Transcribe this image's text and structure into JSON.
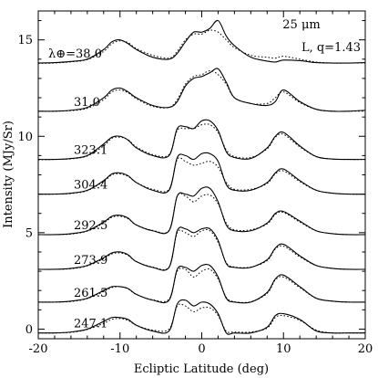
{
  "chart_data": {
    "type": "line",
    "xlabel": "Ecliptic Latitude (deg)",
    "ylabel": "Intensity (MJy/Sr)",
    "xlim": [
      -20,
      20
    ],
    "ylim": [
      -0.5,
      16.5
    ],
    "x_ticks": [
      "-20",
      "-10",
      "0",
      "10",
      "20"
    ],
    "y_ticks": [
      "0",
      "5",
      "10",
      "15"
    ],
    "x_tick_values": [
      -20,
      -10,
      0,
      10,
      20
    ],
    "y_tick_values": [
      0,
      5,
      10,
      15
    ],
    "annotations": {
      "wavelength": "25 μm",
      "model": "L, q=1.43"
    },
    "line_styles": {
      "observed": "solid",
      "model": "dotted"
    },
    "color": "#000000",
    "x_grid": [
      -20,
      -18,
      -16,
      -14,
      -12,
      -11,
      -10,
      -9,
      -8,
      -6,
      -4,
      -3,
      -2,
      -1,
      0,
      1,
      2,
      3,
      4,
      6,
      8,
      9,
      10,
      12,
      14,
      16,
      18,
      20
    ],
    "series": [
      {
        "label": "λ⊕=38.0",
        "observed": [
          13.8,
          13.82,
          13.88,
          14.0,
          14.5,
          14.9,
          15.0,
          14.8,
          14.5,
          14.1,
          14.0,
          14.3,
          14.9,
          15.4,
          15.4,
          15.6,
          16.0,
          15.2,
          14.7,
          14.1,
          13.9,
          13.85,
          13.95,
          13.92,
          13.82,
          13.8,
          13.8,
          13.82
        ],
        "model": [
          13.78,
          13.8,
          13.86,
          13.98,
          14.4,
          14.8,
          14.95,
          14.85,
          14.55,
          14.2,
          14.05,
          14.4,
          15.0,
          15.3,
          15.3,
          15.5,
          15.4,
          15.0,
          14.6,
          14.2,
          14.1,
          14.05,
          14.15,
          14.0,
          13.85,
          13.8,
          13.8,
          13.8
        ]
      },
      {
        "label": "31.0",
        "observed": [
          11.3,
          11.3,
          11.35,
          11.5,
          12.0,
          12.4,
          12.5,
          12.3,
          12.0,
          11.6,
          11.5,
          11.8,
          12.6,
          13.0,
          13.1,
          13.3,
          13.5,
          12.8,
          12.0,
          11.7,
          11.6,
          11.8,
          12.4,
          11.8,
          11.4,
          11.3,
          11.3,
          11.35
        ],
        "model": [
          11.3,
          11.3,
          11.33,
          11.45,
          11.9,
          12.3,
          12.4,
          12.25,
          11.95,
          11.55,
          11.5,
          11.9,
          12.7,
          13.1,
          13.2,
          13.4,
          13.2,
          12.7,
          12.0,
          11.7,
          11.7,
          12.0,
          12.3,
          11.75,
          11.4,
          11.3,
          11.3,
          11.3
        ]
      },
      {
        "label": "323.1",
        "observed": [
          8.8,
          8.8,
          8.85,
          9.0,
          9.6,
          9.95,
          10.0,
          9.8,
          9.4,
          9.0,
          9.0,
          10.4,
          10.5,
          10.4,
          10.8,
          10.8,
          10.3,
          9.2,
          8.9,
          8.85,
          9.4,
          10.0,
          10.2,
          9.5,
          8.95,
          8.82,
          8.8,
          8.8
        ],
        "model": [
          8.78,
          8.8,
          8.83,
          8.98,
          9.5,
          9.9,
          9.95,
          9.82,
          9.45,
          9.05,
          9.05,
          10.3,
          10.4,
          10.4,
          10.6,
          10.6,
          10.2,
          9.3,
          8.95,
          8.9,
          9.35,
          9.95,
          10.1,
          9.45,
          8.95,
          8.82,
          8.8,
          8.8
        ]
      },
      {
        "label": "304.4",
        "observed": [
          7.0,
          7.0,
          7.05,
          7.2,
          7.7,
          8.05,
          8.1,
          7.95,
          7.6,
          7.2,
          7.2,
          8.9,
          9.0,
          8.8,
          9.1,
          9.1,
          8.7,
          7.5,
          7.2,
          7.2,
          7.6,
          8.1,
          8.3,
          7.7,
          7.2,
          7.05,
          7.0,
          7.0
        ],
        "model": [
          7.0,
          7.0,
          7.03,
          7.18,
          7.65,
          8.0,
          8.05,
          7.92,
          7.6,
          7.25,
          7.25,
          8.8,
          8.7,
          8.5,
          8.6,
          8.7,
          8.4,
          7.6,
          7.25,
          7.25,
          7.55,
          8.05,
          8.2,
          7.65,
          7.2,
          7.05,
          7.0,
          7.0
        ]
      },
      {
        "label": "292.5",
        "observed": [
          4.9,
          4.9,
          4.95,
          5.1,
          5.55,
          5.85,
          5.9,
          5.75,
          5.4,
          5.1,
          5.1,
          6.9,
          7.0,
          6.9,
          7.3,
          7.3,
          6.6,
          5.4,
          5.1,
          5.1,
          5.5,
          6.0,
          6.1,
          5.6,
          5.1,
          4.95,
          4.9,
          4.9
        ],
        "model": [
          4.9,
          4.9,
          4.93,
          5.08,
          5.5,
          5.8,
          5.85,
          5.72,
          5.4,
          5.12,
          5.12,
          6.9,
          6.9,
          6.6,
          6.9,
          6.95,
          6.5,
          5.5,
          5.15,
          5.15,
          5.45,
          5.95,
          6.05,
          5.55,
          5.1,
          4.95,
          4.9,
          4.9
        ]
      },
      {
        "label": "273.9",
        "observed": [
          3.1,
          3.1,
          3.15,
          3.3,
          3.7,
          3.95,
          4.0,
          3.85,
          3.5,
          3.2,
          3.2,
          5.1,
          5.2,
          5.0,
          5.2,
          5.2,
          4.6,
          3.4,
          3.2,
          3.2,
          3.6,
          4.2,
          4.4,
          3.8,
          3.3,
          3.15,
          3.1,
          3.1
        ],
        "model": [
          3.1,
          3.1,
          3.13,
          3.28,
          3.65,
          3.9,
          3.95,
          3.82,
          3.5,
          3.22,
          3.22,
          5.0,
          5.0,
          4.8,
          5.1,
          5.1,
          4.5,
          3.45,
          3.22,
          3.22,
          3.55,
          4.15,
          4.3,
          3.75,
          3.3,
          3.15,
          3.1,
          3.1
        ]
      },
      {
        "label": "261.5",
        "observed": [
          1.4,
          1.4,
          1.45,
          1.6,
          2.0,
          2.2,
          2.2,
          2.1,
          1.8,
          1.5,
          1.5,
          3.1,
          3.2,
          3.0,
          3.3,
          3.3,
          2.7,
          1.6,
          1.4,
          1.4,
          1.9,
          2.6,
          2.8,
          2.2,
          1.6,
          1.45,
          1.4,
          1.4
        ],
        "model": [
          1.4,
          1.4,
          1.43,
          1.58,
          1.95,
          2.15,
          2.2,
          2.08,
          1.8,
          1.52,
          1.55,
          3.0,
          3.1,
          2.7,
          3.0,
          3.1,
          2.6,
          1.65,
          1.42,
          1.42,
          1.85,
          2.55,
          2.7,
          2.15,
          1.6,
          1.45,
          1.4,
          1.4
        ]
      },
      {
        "label": "247.1",
        "observed": [
          -0.2,
          -0.2,
          -0.15,
          0.0,
          0.4,
          0.6,
          0.6,
          0.5,
          0.2,
          -0.1,
          -0.1,
          1.3,
          1.5,
          1.2,
          1.4,
          1.3,
          0.8,
          -0.2,
          -0.2,
          -0.2,
          0.1,
          0.7,
          0.8,
          0.5,
          -0.1,
          -0.2,
          -0.2,
          -0.2
        ],
        "model": [
          -0.2,
          -0.2,
          -0.17,
          -0.02,
          0.3,
          0.5,
          0.55,
          0.45,
          0.2,
          -0.05,
          0.0,
          1.2,
          1.2,
          0.9,
          1.1,
          1.1,
          0.7,
          -0.1,
          -0.15,
          -0.15,
          0.05,
          0.6,
          0.7,
          0.45,
          -0.05,
          -0.2,
          -0.2,
          -0.2
        ]
      }
    ]
  }
}
